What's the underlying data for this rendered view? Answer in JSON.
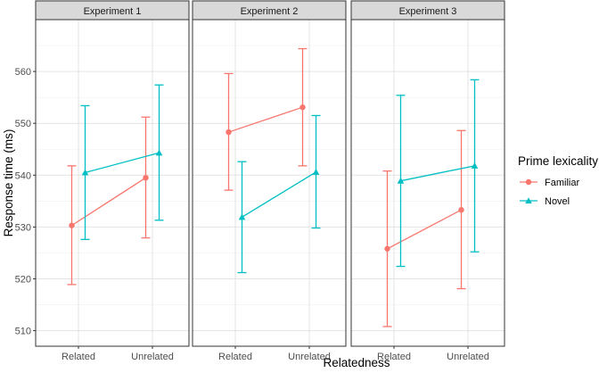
{
  "chart_data": {
    "type": "line",
    "xlabel": "Relatedness",
    "ylabel": "Response time (ms)",
    "ylim": [
      507,
      570
    ],
    "yticks": [
      510,
      520,
      530,
      540,
      550,
      560
    ],
    "categories": [
      "Related",
      "Unrelated"
    ],
    "grid": true,
    "legend": {
      "title": "Prime lexicality",
      "position": "right"
    },
    "panels": [
      {
        "title": "Experiment 1",
        "series": [
          {
            "name": "Familiar",
            "values": [
              530.3,
              539.5
            ],
            "lower": [
              518.9,
              527.9
            ],
            "upper": [
              541.8,
              551.2
            ]
          },
          {
            "name": "Novel",
            "values": [
              540.5,
              544.3
            ],
            "lower": [
              527.6,
              531.3
            ],
            "upper": [
              553.4,
              557.4
            ]
          }
        ]
      },
      {
        "title": "Experiment 2",
        "series": [
          {
            "name": "Familiar",
            "values": [
              548.3,
              553.1
            ],
            "lower": [
              537.1,
              541.8
            ],
            "upper": [
              559.6,
              564.4
            ]
          },
          {
            "name": "Novel",
            "values": [
              531.9,
              540.6
            ],
            "lower": [
              521.2,
              529.8
            ],
            "upper": [
              542.6,
              551.5
            ]
          }
        ]
      },
      {
        "title": "Experiment 3",
        "series": [
          {
            "name": "Familiar",
            "values": [
              525.8,
              533.3
            ],
            "lower": [
              510.8,
              518.1
            ],
            "upper": [
              540.8,
              548.6
            ]
          },
          {
            "name": "Novel",
            "values": [
              538.9,
              541.8
            ],
            "lower": [
              522.4,
              525.2
            ],
            "upper": [
              555.4,
              558.4
            ]
          }
        ]
      }
    ],
    "colors": {
      "Familiar": "#F8766D",
      "Novel": "#00BFC4"
    },
    "markers": {
      "Familiar": "circle",
      "Novel": "triangle"
    }
  }
}
